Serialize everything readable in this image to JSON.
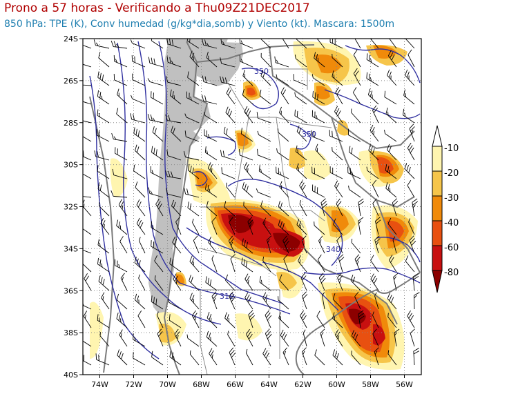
{
  "header": {
    "title": "Prono a 57 horas - Verificando a Thu09Z21DEC2017",
    "subtitle": "850 hPa: TPE (K), Conv humedad (g/kg*dia,somb) y Viento (kt). Mascara: 1500m"
  },
  "map": {
    "lat_ticks": [
      "24S",
      "26S",
      "28S",
      "30S",
      "32S",
      "34S",
      "36S",
      "38S",
      "40S"
    ],
    "lon_ticks": [
      "74W",
      "72W",
      "70W",
      "68W",
      "66W",
      "64W",
      "62W",
      "60W",
      "58W",
      "56W"
    ],
    "lat_range": [
      -40,
      -24
    ],
    "lon_range": [
      -75,
      -55
    ],
    "contour_labels": [
      "350",
      "350",
      "340",
      "310"
    ],
    "colors": {
      "land_mask": "#c0c0c0",
      "border": "#7a7a7a",
      "contour": "#3030a0",
      "barb": "#000000",
      "grid": "#888888"
    }
  },
  "colorbar": {
    "labels": [
      "-10",
      "-20",
      "-30",
      "-40",
      "-60",
      "-80"
    ],
    "colors": [
      "#ffffff",
      "#fff5b0",
      "#f6c54a",
      "#f08a0a",
      "#e85010",
      "#c81010",
      "#8c0000"
    ]
  }
}
